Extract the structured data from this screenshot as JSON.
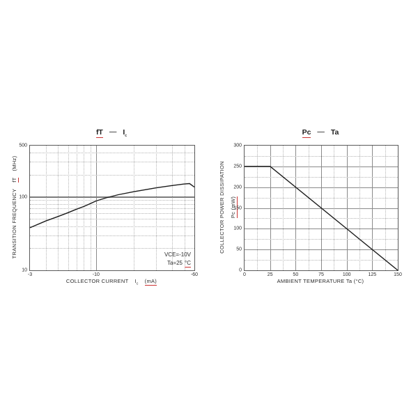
{
  "colors": {
    "red_accent": "#cc3333",
    "curve": "#1c1c1c",
    "grid_solid": "#8a8a8a",
    "grid_dotted": "#b4b4b4",
    "text": "#2b2b2b"
  },
  "left_chart": {
    "title": {
      "symbol": "fT",
      "dash": "—",
      "vs_symbol": "I",
      "vs_sub": "c"
    },
    "y_axis_title": {
      "text": "TRANSITION FREQUENCY",
      "symbol": "fT",
      "unit": "(MHz)"
    },
    "x_axis_title": {
      "text": "COLLECTOR CURRENT",
      "symbol": "I",
      "sub": "c",
      "unit": "(mA)"
    },
    "annotation": {
      "line1": "VCE=-10V",
      "line2_prefix": "Ta=25",
      "line2_unit": "°C"
    }
  },
  "right_chart": {
    "title": {
      "symbol": "Pc",
      "dash": "—",
      "vs_symbol": "Ta"
    },
    "y_axis_title": {
      "line1": "COLLECTOR POWER DISSIPATION",
      "line2": "Pc (mW)"
    },
    "x_axis_title": {
      "text": "AMBIENT TEMPERATURE Ta (°C)"
    }
  },
  "chart_data": [
    {
      "id": "ft_ic",
      "type": "line",
      "title": "fT — Ic",
      "xlabel": "COLLECTOR CURRENT Ic (mA)",
      "ylabel": "TRANSITION FREQUENCY fT (MHz)",
      "x_scale": "log",
      "y_scale": "log",
      "xlim": [
        3,
        60
      ],
      "ylim": [
        10,
        500
      ],
      "x_note": "collector currents are negative (PNP device); magnitudes plotted on log axis with negative tick labels",
      "conditions": [
        "VCE=-10V",
        "Ta=25 °C"
      ],
      "x_ticks": [
        {
          "v": 3,
          "t": "-3"
        },
        {
          "v": 10,
          "t": "-10"
        },
        {
          "v": 60,
          "t": "-60"
        }
      ],
      "y_ticks": [
        {
          "v": 500,
          "t": "500"
        },
        {
          "v": 100,
          "t": "100"
        },
        {
          "v": 10,
          "t": "10"
        }
      ],
      "grid": {
        "x_dotted": [
          4,
          5,
          6,
          7,
          8,
          9,
          20,
          30,
          40,
          50
        ],
        "x_solid": [
          10
        ],
        "y_dotted": [
          20,
          30,
          40,
          50,
          60,
          70,
          80,
          90,
          200,
          300,
          400
        ],
        "y_solid": [],
        "y_solid_thick": [
          100
        ]
      },
      "series": [
        {
          "name": "fT vs Ic",
          "points": [
            [
              3,
              38
            ],
            [
              4,
              47
            ],
            [
              5,
              54
            ],
            [
              6,
              61
            ],
            [
              7,
              68
            ],
            [
              8,
              74
            ],
            [
              9,
              81
            ],
            [
              10,
              88
            ],
            [
              12,
              97
            ],
            [
              15,
              107
            ],
            [
              20,
              118
            ],
            [
              25,
              126
            ],
            [
              30,
              133
            ],
            [
              40,
              143
            ],
            [
              50,
              150
            ],
            [
              55,
              152
            ],
            [
              60,
              136
            ]
          ]
        }
      ]
    },
    {
      "id": "pc_ta",
      "type": "line",
      "title": "Pc — Ta",
      "xlabel": "AMBIENT TEMPERATURE Ta (°C)",
      "ylabel": "COLLECTOR POWER DISSIPATION Pc (mW)",
      "x_scale": "linear",
      "y_scale": "linear",
      "xlim": [
        0,
        150
      ],
      "ylim": [
        0,
        300
      ],
      "x_ticks": [
        {
          "v": 0,
          "t": "0"
        },
        {
          "v": 25,
          "t": "25"
        },
        {
          "v": 50,
          "t": "50"
        },
        {
          "v": 75,
          "t": "75"
        },
        {
          "v": 100,
          "t": "100"
        },
        {
          "v": 125,
          "t": "125"
        },
        {
          "v": 150,
          "t": "150"
        }
      ],
      "y_ticks": [
        {
          "v": 0,
          "t": "0"
        },
        {
          "v": 50,
          "t": "50"
        },
        {
          "v": 100,
          "t": "100"
        },
        {
          "v": 150,
          "t": "150"
        },
        {
          "v": 200,
          "t": "200"
        },
        {
          "v": 250,
          "t": "250"
        },
        {
          "v": 300,
          "t": "300"
        }
      ],
      "grid": {
        "x_dotted": [
          12.5,
          37.5,
          62.5,
          87.5,
          112.5,
          137.5
        ],
        "x_solid": [
          25,
          50,
          75,
          100,
          125
        ],
        "y_dotted": [
          25,
          75,
          125,
          175,
          225,
          275
        ],
        "y_solid": [
          50,
          100,
          150,
          200,
          250
        ],
        "y_solid_thick": []
      },
      "series": [
        {
          "name": "Pc vs Ta",
          "points": [
            [
              0,
              250
            ],
            [
              25,
              250
            ],
            [
              150,
              0
            ]
          ]
        }
      ]
    }
  ]
}
